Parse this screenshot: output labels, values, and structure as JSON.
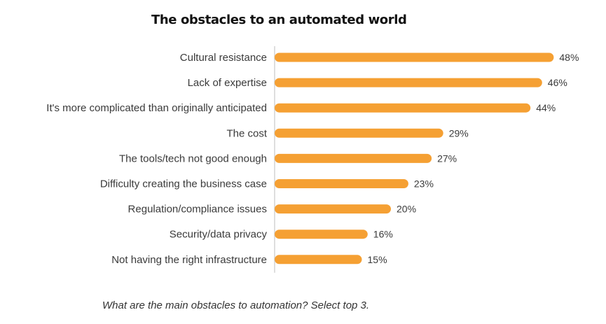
{
  "chart_data": {
    "type": "bar",
    "orientation": "horizontal",
    "title": "The obstacles to an automated world",
    "categories": [
      "Cultural resistance",
      "Lack of expertise",
      "It's more complicated than originally anticipated",
      "The cost",
      "The tools/tech not good enough",
      "Difficulty creating the business case",
      "Regulation/compliance issues",
      "Security/data privacy",
      "Not having the right infrastructure"
    ],
    "values": [
      48,
      46,
      44,
      29,
      27,
      23,
      20,
      16,
      15
    ],
    "value_labels": [
      "48%",
      "46%",
      "44%",
      "29%",
      "27%",
      "23%",
      "20%",
      "16%",
      "15%"
    ],
    "unit": "%",
    "xlabel": "",
    "ylabel": "",
    "xlim": [
      0,
      50
    ],
    "grid": false,
    "legend": "none",
    "bar_color": "#f5a033",
    "axis_color": "#c8c8c8"
  },
  "footnote": "What are the main obstacles to automation? Select top 3."
}
